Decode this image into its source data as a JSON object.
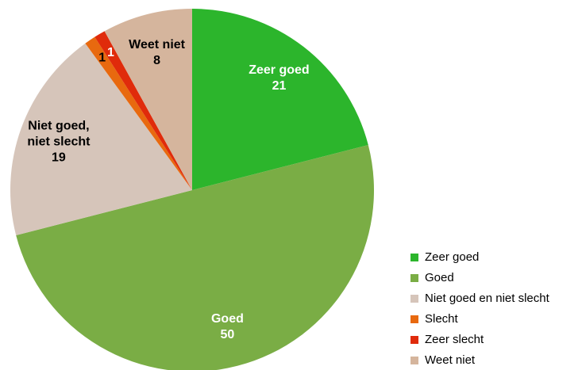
{
  "chart_data": {
    "type": "pie",
    "categories": [
      "Zeer goed",
      "Goed",
      "Niet goed en niet slecht",
      "Slecht",
      "Zeer slecht",
      "Weet niet"
    ],
    "values": [
      21,
      50,
      19,
      1,
      1,
      8
    ],
    "colors": [
      "#2cb52c",
      "#7aad45",
      "#d6c5ba",
      "#e8690f",
      "#e02b0b",
      "#d5b59d"
    ],
    "slice_labels": [
      [
        "Zeer goed"
      ],
      [
        "Goed"
      ],
      [
        "Niet goed,",
        "niet slecht"
      ],
      null,
      null,
      [
        "Weet niet"
      ]
    ],
    "label_colors": [
      "#ffffff",
      "#ffffff",
      "#000000",
      "#000000",
      "#ffffff",
      "#000000"
    ],
    "legend": "bottom-right"
  }
}
